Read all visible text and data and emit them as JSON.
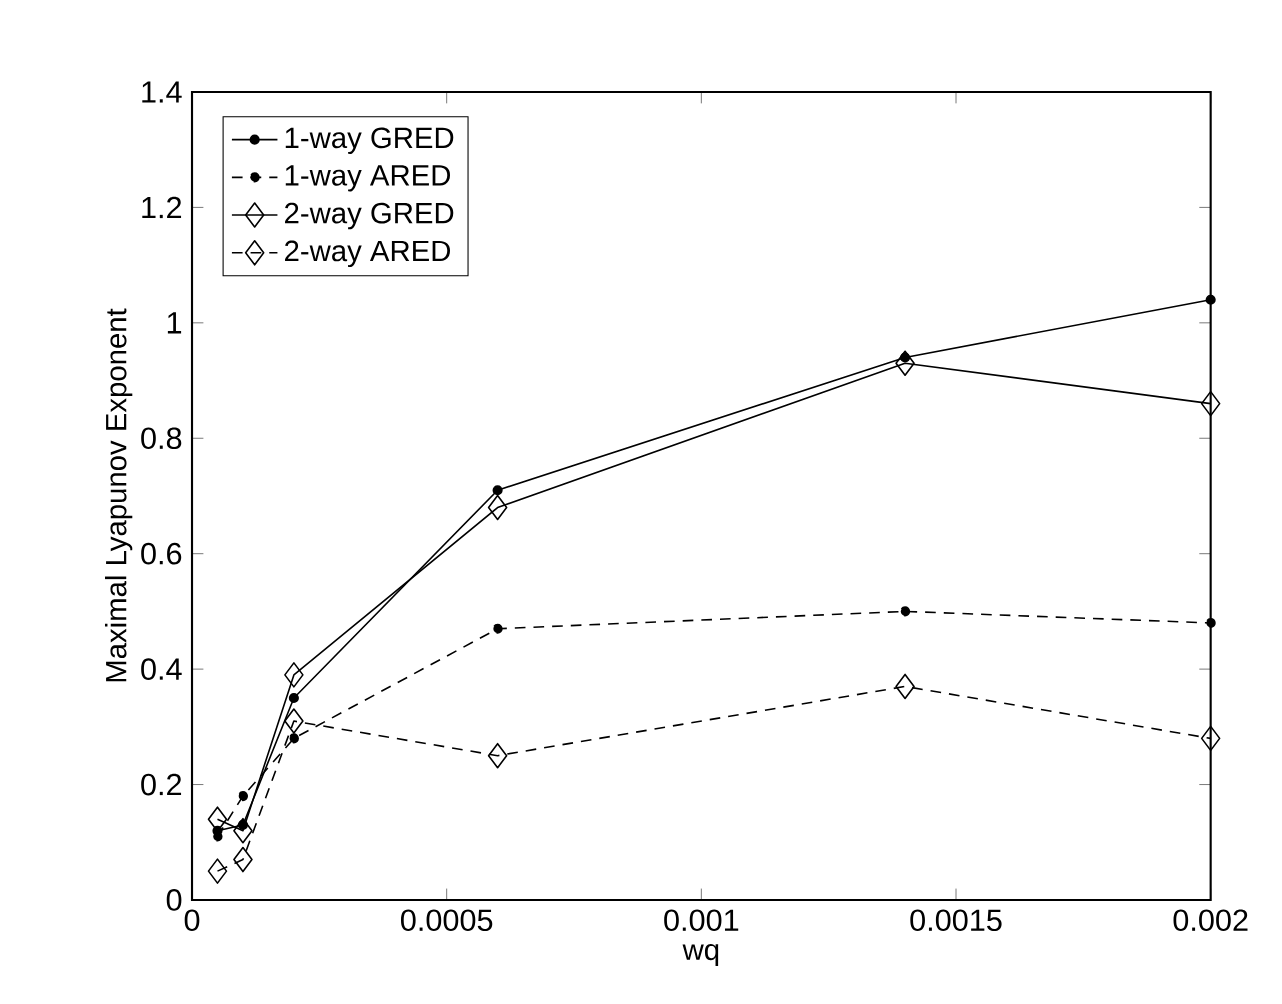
{
  "chart_data": {
    "type": "line",
    "xlabel": "wq",
    "ylabel": "Maximal Lyapunov  Exponent",
    "x": [
      5e-05,
      0.0001,
      0.0002,
      0.0006,
      0.0014,
      0.002
    ],
    "series": [
      {
        "name": "1-way GRED",
        "color": "#000000",
        "marker": "circle",
        "line_style": "solid",
        "values": [
          0.12,
          0.13,
          0.35,
          0.71,
          0.94,
          1.04
        ]
      },
      {
        "name": "1-way ARED",
        "color": "#000000",
        "marker": "circle",
        "line_style": "dashed",
        "values": [
          0.11,
          0.18,
          0.28,
          0.47,
          0.5,
          0.48
        ]
      },
      {
        "name": "2-way GRED",
        "color": "#000000",
        "marker": "diamond",
        "line_style": "solid",
        "values": [
          0.14,
          0.12,
          0.39,
          0.68,
          0.93,
          0.86
        ]
      },
      {
        "name": "2-way ARED",
        "color": "#000000",
        "marker": "diamond",
        "line_style": "dashed",
        "values": [
          0.05,
          0.07,
          0.31,
          0.25,
          0.37,
          0.28
        ]
      }
    ],
    "xlim": [
      0,
      0.002
    ],
    "ylim": [
      0,
      1.4
    ],
    "xticks": [
      0,
      0.0005,
      0.001,
      0.0015,
      0.002
    ],
    "yticks": [
      0,
      0.2,
      0.4,
      0.6,
      0.8,
      1,
      1.2,
      1.4
    ],
    "grid": false,
    "legend": "top left"
  }
}
